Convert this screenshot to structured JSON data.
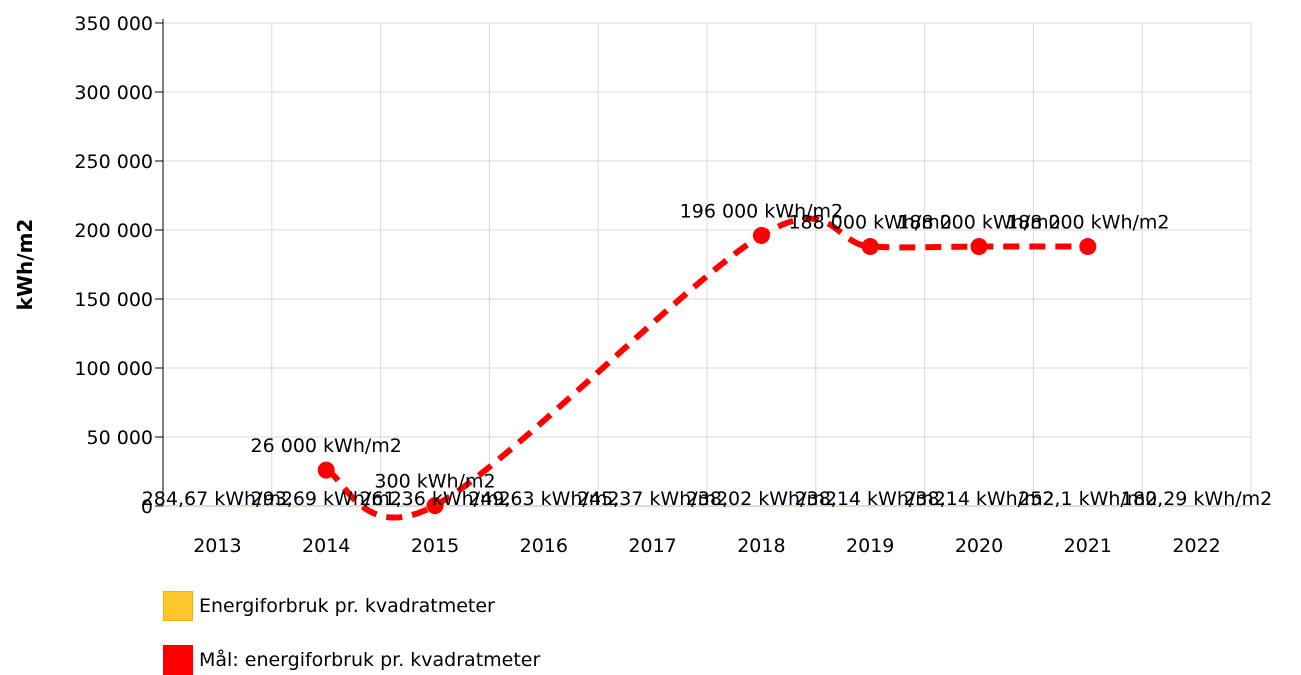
{
  "chart_data": {
    "type": "bar+line",
    "ylabel": "kWh/m2",
    "xlabel": "",
    "ylim": [
      0,
      350000
    ],
    "yticks": [
      0,
      50000,
      100000,
      150000,
      200000,
      250000,
      300000,
      350000
    ],
    "ytick_labels": [
      "0",
      "50 000",
      "100 000",
      "150 000",
      "200 000",
      "250 000",
      "300 000",
      "350 000"
    ],
    "categories": [
      "2013",
      "2014",
      "2015",
      "2016",
      "2017",
      "2018",
      "2019",
      "2020",
      "2021",
      "2022"
    ],
    "grid": true,
    "series": [
      {
        "name": "Energiforbruk pr. kvadratmeter",
        "type": "bar",
        "color": "#ffc629",
        "values": [
          284.67,
          293.69,
          261.36,
          249.63,
          245.37,
          238.02,
          238.14,
          238.14,
          252.1,
          180.29
        ],
        "labels": [
          "284,67 kWh/m2",
          "293,69 kWh/m2",
          "261,36 kWh/m2",
          "249,63 kWh/m2",
          "245,37 kWh/m2",
          "238,02 kWh/m2",
          "238,14 kWh/m2",
          "238,14 kWh/m2",
          "252,1 kWh/m2",
          "180,29 kWh/m2"
        ]
      },
      {
        "name": "Mål: energiforbruk pr. kvadratmeter",
        "type": "line",
        "style": "dashed-smooth",
        "color": "#ff0000",
        "x": [
          "2014",
          "2015",
          "2018",
          "2019",
          "2020",
          "2021"
        ],
        "values": [
          26000,
          300,
          196000,
          188000,
          188000,
          188000
        ],
        "labels": [
          "26 000 kWh/m2",
          "300 kWh/m2",
          "196 000 kWh/m2",
          "188 000 kWh/m2",
          "188 000 kWh/m2",
          "188 000 kWh/m2"
        ]
      }
    ],
    "legend_position": "bottom-left"
  },
  "legend": {
    "item1": "Energiforbruk pr. kvadratmeter",
    "item2": "Mål: energiforbruk pr. kvadratmeter",
    "color1": "#ffc629",
    "color2": "#ff0000"
  }
}
